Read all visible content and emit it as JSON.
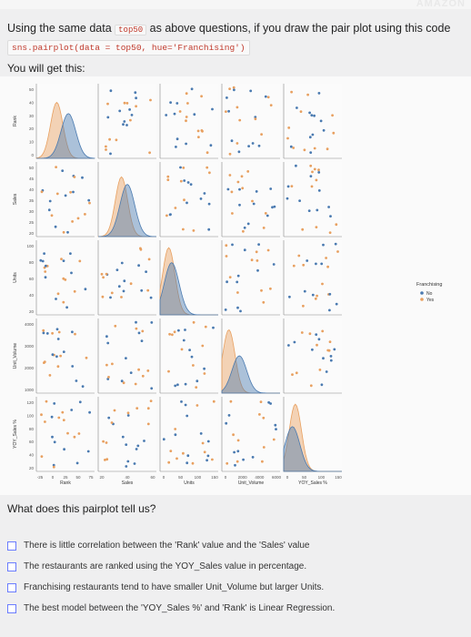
{
  "question": {
    "prefix": "Using the same data",
    "var": "top50",
    "suffix": "as above questions, if you draw the pair plot using this code",
    "code": "sns.pairplot(data = top50, hue='Franchising')",
    "you_get": "You will get this:",
    "ask": "What does this pairplot tell us?"
  },
  "options": [
    "There is little correlation between the 'Rank' value and the 'Sales' value",
    "The restaurants are ranked using the YOY_Sales value in percentage.",
    "Franchising restaurants tend to have smaller Unit_Volume but larger Units.",
    "The best model between the 'YOY_Sales %' and 'Rank' is Linear Regression."
  ],
  "chart_data": {
    "type": "scatter",
    "variables": [
      "Rank",
      "Sales",
      "Units",
      "Unit_Volume",
      "YOY_Sales %"
    ],
    "hue": "Franchising",
    "legend": {
      "title": "Franchising",
      "entries": [
        "No",
        "Yes"
      ],
      "placement": "right"
    },
    "colors": {
      "No": "#4a7ab0",
      "Yes": "#e8a060"
    },
    "y_ticks": [
      [
        "50",
        "40",
        "30",
        "20",
        "10",
        "0"
      ],
      [
        "50",
        "45",
        "40",
        "35",
        "30",
        "25",
        "20"
      ],
      [
        "100",
        "80",
        "60",
        "40",
        "20"
      ],
      [
        "4000",
        "3000",
        "2000",
        "1000"
      ],
      [
        "120",
        "100",
        "80",
        "60",
        "40",
        "20"
      ]
    ],
    "x_ticks": [
      [
        "-25",
        "0",
        "25",
        "50",
        "75"
      ],
      [
        "20",
        "40",
        "60"
      ],
      [
        "0",
        "50",
        "100",
        "150"
      ],
      [
        "0",
        "2000",
        "4000",
        "6000"
      ],
      [
        "0",
        "50",
        "100",
        "150"
      ]
    ],
    "x_labels": [
      "Rank",
      "Sales",
      "Units",
      "Unit_Volume",
      "YOY_Sales %"
    ],
    "y_labels": [
      "Rank",
      "Sales",
      "Units",
      "Unit_Volume",
      "YOY_Sales %"
    ]
  }
}
